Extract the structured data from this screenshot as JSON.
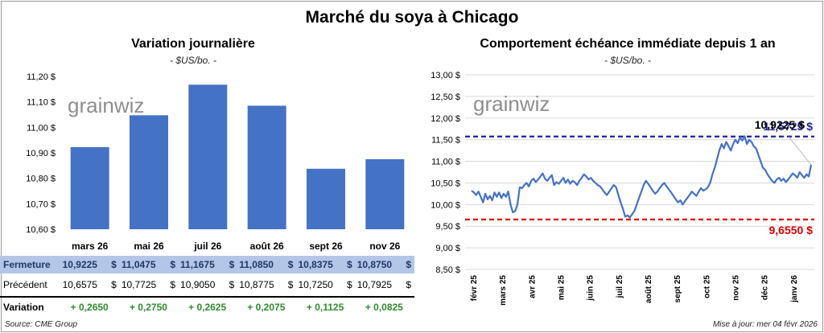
{
  "main_title": "Marché du soya à Chicago",
  "left": {
    "title": "Variation journalière",
    "units": "- $US/bo. -",
    "watermark": "grainwiz"
  },
  "right": {
    "title": "Comportement échéance immédiate depuis 1 an",
    "units": "- $US/bo. -",
    "watermark": "grainwiz"
  },
  "chart_data": [
    {
      "type": "bar",
      "categories": [
        "mars 26",
        "mai 26",
        "juil 26",
        "août 26",
        "sept 26",
        "nov 26"
      ],
      "values": [
        10.9225,
        11.0475,
        11.1675,
        11.085,
        10.8375,
        10.875
      ],
      "ylim": [
        10.6,
        11.2
      ],
      "yticks": [
        "10,60 $",
        "10,70 $",
        "10,80 $",
        "10,90 $",
        "11,00 $",
        "11,10 $",
        "11,20 $"
      ],
      "ytick_values": [
        10.6,
        10.7,
        10.8,
        10.9,
        11.0,
        11.1,
        11.2
      ],
      "bar_color": "#4472c4",
      "grid": false
    },
    {
      "type": "line",
      "x_ticks": [
        "févr 25",
        "mars 25",
        "avr 25",
        "mai 25",
        "juin 25",
        "juil 25",
        "août 25",
        "sept 25",
        "oct 25",
        "nov 25",
        "déc 25",
        "janv 26"
      ],
      "ylim": [
        8.5,
        13.0
      ],
      "yticks": [
        "8,50 $",
        "9,00 $",
        "9,50 $",
        "10,00 $",
        "10,50 $",
        "11,00 $",
        "11,50 $",
        "12,00 $",
        "12,50 $",
        "13,00 $"
      ],
      "ytick_values": [
        8.5,
        9.0,
        9.5,
        10.0,
        10.5,
        11.0,
        11.5,
        12.0,
        12.5,
        13.0
      ],
      "values": [
        10.32,
        10.28,
        10.22,
        10.3,
        10.18,
        10.05,
        10.25,
        10.12,
        10.2,
        10.1,
        10.28,
        10.18,
        10.28,
        10.15,
        10.25,
        10.18,
        10.3,
        10.0,
        9.82,
        9.85,
        10.0,
        10.4,
        10.38,
        10.45,
        10.5,
        10.42,
        10.55,
        10.6,
        10.52,
        10.58,
        10.65,
        10.72,
        10.6,
        10.55,
        10.62,
        10.68,
        10.45,
        10.52,
        10.48,
        10.55,
        10.62,
        10.5,
        10.58,
        10.48,
        10.55,
        10.52,
        10.45,
        10.55,
        10.62,
        10.7,
        10.65,
        10.58,
        10.62,
        10.55,
        10.5,
        10.45,
        10.42,
        10.35,
        10.28,
        10.22,
        10.3,
        10.38,
        10.45,
        10.4,
        10.22,
        10.05,
        9.9,
        9.72,
        9.75,
        9.7,
        9.78,
        9.85,
        10.0,
        10.15,
        10.3,
        10.45,
        10.55,
        10.48,
        10.4,
        10.32,
        10.25,
        10.3,
        10.38,
        10.45,
        10.5,
        10.42,
        10.35,
        10.28,
        10.2,
        10.12,
        10.05,
        10.1,
        10.0,
        10.08,
        10.15,
        10.22,
        10.3,
        10.25,
        10.2,
        10.3,
        10.38,
        10.32,
        10.35,
        10.4,
        10.5,
        10.7,
        10.85,
        11.05,
        11.25,
        11.4,
        11.3,
        11.45,
        11.35,
        11.25,
        11.4,
        11.5,
        11.42,
        11.55,
        11.48,
        11.58,
        11.4,
        11.5,
        11.45,
        11.35,
        11.3,
        11.15,
        11.0,
        10.85,
        10.8,
        10.7,
        10.62,
        10.55,
        10.5,
        10.58,
        10.62,
        10.55,
        10.6,
        10.52,
        10.58,
        10.65,
        10.72,
        10.68,
        10.62,
        10.75,
        10.68,
        10.62,
        10.7,
        10.65,
        10.92
      ],
      "line_color": "#4472c4",
      "hlines": [
        {
          "value": 11.5725,
          "color": "#1f1f9e",
          "label": "11,5725 $"
        },
        {
          "value": 9.655,
          "color": "#e00000",
          "label": "9,6550 $"
        }
      ],
      "last_value_label": "10,9225 $",
      "grid": true
    }
  ],
  "table": {
    "rows": [
      {
        "label": "Fermeture",
        "cells": [
          "10,9225",
          "11,0475",
          "11,1675",
          "11,0850",
          "10,8375",
          "10,8750"
        ]
      },
      {
        "label": "Précédent",
        "cells": [
          "10,6575",
          "10,7725",
          "10,9050",
          "10,8775",
          "10,7250",
          "10,7925"
        ]
      },
      {
        "label": "Variation",
        "cells": [
          "+ 0,2650",
          "+ 0,2750",
          "+ 0,2625",
          "+ 0,2075",
          "+ 0,1125",
          "+ 0,0825"
        ]
      }
    ],
    "currency": "$"
  },
  "footer": {
    "source": "Source: CME Group",
    "updated": "Mise à jour: mer 04 févr 2026"
  }
}
